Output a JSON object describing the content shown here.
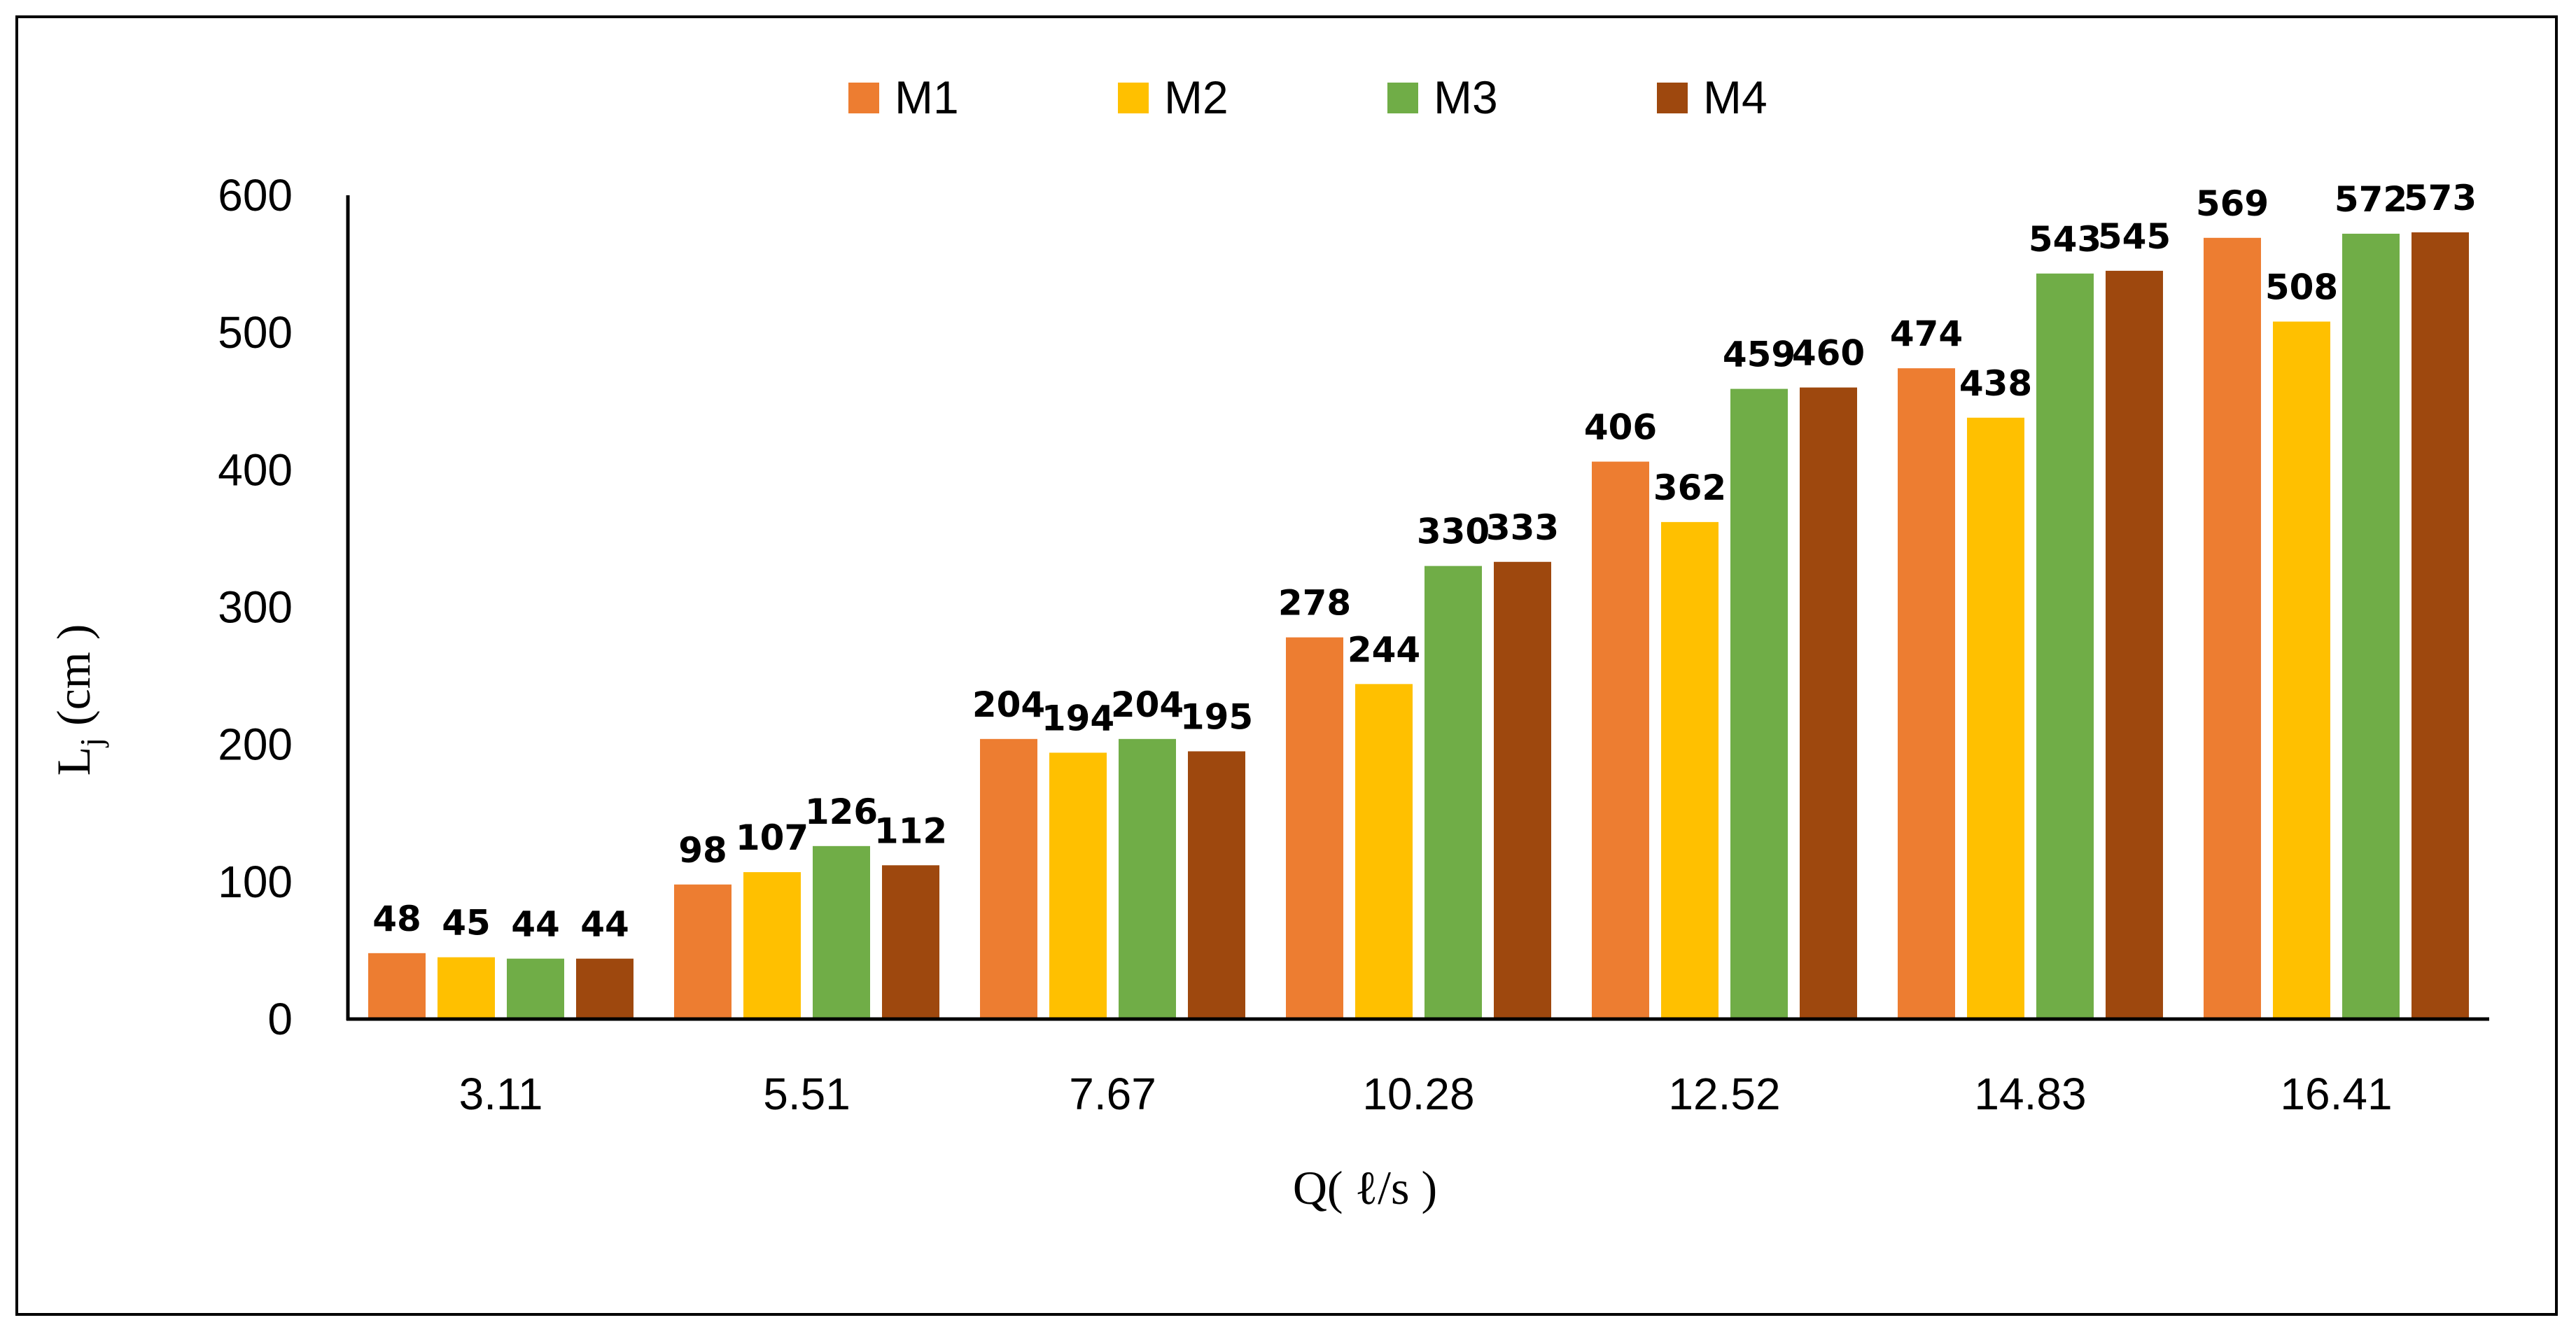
{
  "chart_data": {
    "type": "bar",
    "categories": [
      "3.11",
      "5.51",
      "7.67",
      "10.28",
      "12.52",
      "14.83",
      "16.41"
    ],
    "series": [
      {
        "name": "M1",
        "color": "#ED7D31",
        "values": [
          48,
          98,
          204,
          278,
          406,
          474,
          569
        ]
      },
      {
        "name": "M2",
        "color": "#FFC000",
        "values": [
          45,
          107,
          194,
          244,
          362,
          438,
          508
        ]
      },
      {
        "name": "M3",
        "color": "#70AD47",
        "values": [
          44,
          126,
          204,
          330,
          459,
          543,
          572
        ]
      },
      {
        "name": "M4",
        "color": "#9E480E",
        "values": [
          44,
          112,
          195,
          333,
          460,
          545,
          573
        ]
      }
    ],
    "xlabel": "Q( ℓ/s )",
    "ylabel_main": "L",
    "ylabel_sub": "j",
    "ylabel_unit": " (cm )",
    "ylim": [
      0,
      600
    ],
    "yticks": [
      "0",
      "100",
      "200",
      "300",
      "400",
      "500",
      "600"
    ],
    "grid": false,
    "legend_position": "top-center",
    "data_labels": true
  }
}
